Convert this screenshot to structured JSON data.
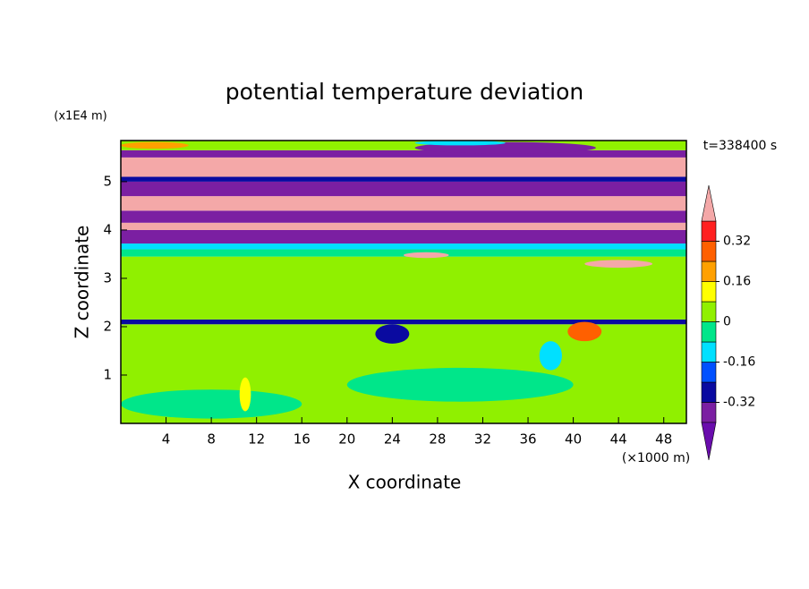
{
  "chart_data": {
    "type": "contour",
    "title": "potential temperature deviation",
    "x_label": "X coordinate",
    "y_label": "Z coordinate",
    "x_unit": "(×1000 m)",
    "y_unit": "(x1E4 m)",
    "time_label": "t=338400 s",
    "xlim": [
      0,
      50
    ],
    "xticks": [
      4,
      8,
      12,
      16,
      20,
      24,
      28,
      32,
      36,
      40,
      44,
      48
    ],
    "ylim": [
      0,
      5.85
    ],
    "yticks": [
      1,
      2,
      3,
      4,
      5
    ],
    "colorbar": {
      "levels": [
        -0.4,
        -0.32,
        -0.24,
        -0.16,
        -0.08,
        0,
        0.08,
        0.16,
        0.24,
        0.32,
        0.4
      ],
      "colors": [
        "#6a0dad",
        "#7b1fa2",
        "#0a0aa0",
        "#0050ff",
        "#00e0ff",
        "#00e68a",
        "#90f000",
        "#ffff00",
        "#ffa000",
        "#ff6000",
        "#ff2020",
        "#f4a8a8"
      ],
      "ticks": [
        -0.32,
        -0.16,
        0,
        0.16,
        0.32
      ]
    },
    "bands": [
      {
        "z": [
          0,
          2.05
        ],
        "value": 0.04
      },
      {
        "z": [
          2.05,
          2.15
        ],
        "value": -0.28
      },
      {
        "z": [
          2.15,
          3.45
        ],
        "value": 0.04
      },
      {
        "z": [
          3.45,
          3.6
        ],
        "value": -0.04
      },
      {
        "z": [
          3.6,
          3.72
        ],
        "value": -0.12
      },
      {
        "z": [
          3.72,
          4.0
        ],
        "value": -0.36
      },
      {
        "z": [
          4.0,
          4.15
        ],
        "value": 0.45
      },
      {
        "z": [
          4.15,
          4.4
        ],
        "value": -0.36
      },
      {
        "z": [
          4.4,
          4.7
        ],
        "value": 0.45
      },
      {
        "z": [
          4.7,
          5.0
        ],
        "value": -0.36
      },
      {
        "z": [
          5.0,
          5.1
        ],
        "value": -0.28
      },
      {
        "z": [
          5.1,
          5.5
        ],
        "value": 0.45
      },
      {
        "z": [
          5.5,
          5.65
        ],
        "value": -0.36
      },
      {
        "z": [
          5.65,
          5.85
        ],
        "value": 0.04
      }
    ],
    "blobs": [
      {
        "x": 8,
        "z": 0.4,
        "rx": 8,
        "rz": 0.3,
        "value": -0.04
      },
      {
        "x": 30,
        "z": 0.8,
        "rx": 10,
        "rz": 0.35,
        "value": -0.04
      },
      {
        "x": 11,
        "z": 0.6,
        "rx": 0.5,
        "rz": 0.35,
        "value": 0.12
      },
      {
        "x": 24,
        "z": 1.85,
        "rx": 1.5,
        "rz": 0.2,
        "value": -0.28
      },
      {
        "x": 41,
        "z": 1.9,
        "rx": 1.5,
        "rz": 0.2,
        "value": 0.24
      },
      {
        "x": 38,
        "z": 1.4,
        "rx": 1,
        "rz": 0.3,
        "value": -0.12
      },
      {
        "x": 27,
        "z": 3.48,
        "rx": 2,
        "rz": 0.06,
        "value": 0.45
      },
      {
        "x": 44,
        "z": 3.3,
        "rx": 3,
        "rz": 0.08,
        "value": 0.45
      },
      {
        "x": 34,
        "z": 5.7,
        "rx": 8,
        "rz": 0.12,
        "value": -0.36
      },
      {
        "x": 30,
        "z": 5.8,
        "rx": 4,
        "rz": 0.05,
        "value": -0.12
      },
      {
        "x": 3,
        "z": 5.75,
        "rx": 3,
        "rz": 0.07,
        "value": 0.16
      }
    ]
  }
}
